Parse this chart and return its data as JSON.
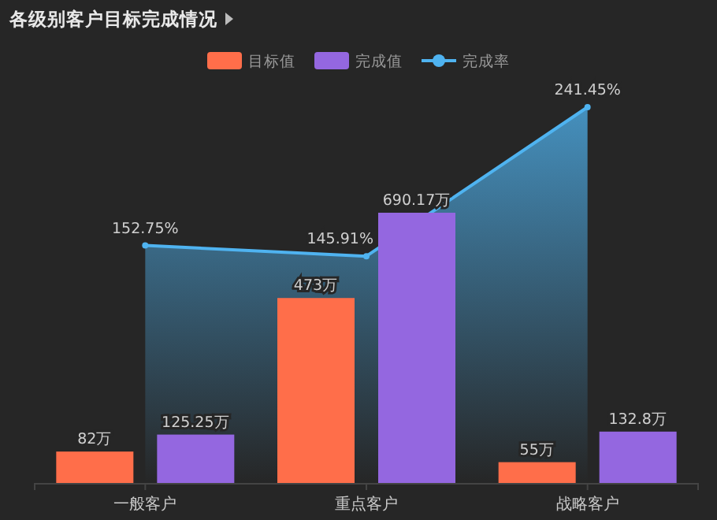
{
  "chart_data": {
    "type": "bar",
    "title": "各级别客户目标完成情况",
    "categories": [
      "一般客户",
      "重点客户",
      "战略客户"
    ],
    "series": [
      {
        "name": "目标值",
        "type": "bar",
        "color": "#ff6e4a",
        "values": [
          82,
          473,
          55
        ],
        "value_labels": [
          "82万",
          "473万",
          "55万"
        ]
      },
      {
        "name": "完成值",
        "type": "bar",
        "color": "#9467e0",
        "values": [
          125.25,
          690.17,
          132.8
        ],
        "value_labels": [
          "125.25万",
          "690.17万",
          "132.8万"
        ]
      },
      {
        "name": "完成率",
        "type": "area",
        "axis": "y2",
        "color": "#4fb3f0",
        "values": [
          152.75,
          145.91,
          241.45
        ],
        "value_labels": [
          "152.75%",
          "145.91%",
          "241.45%"
        ]
      }
    ],
    "legend": "top",
    "marker": "circle",
    "grid": false
  }
}
